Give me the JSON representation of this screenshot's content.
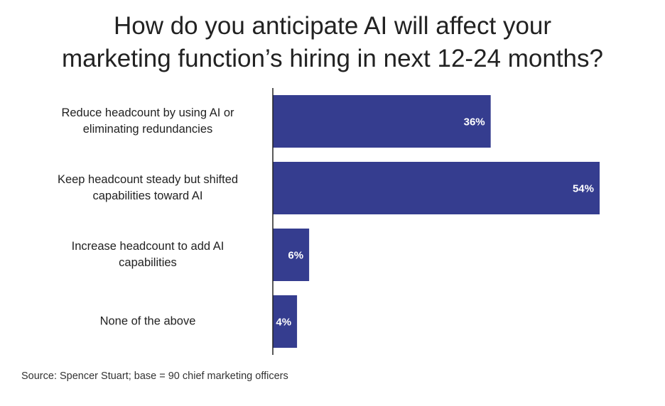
{
  "chart_data": {
    "type": "bar",
    "orientation": "horizontal",
    "title_lines": [
      "How do you anticipate AI will affect your",
      "marketing function’s hiring in next 12-24 months?"
    ],
    "categories": [
      [
        "Reduce headcount by using AI or",
        "eliminating redundancies"
      ],
      [
        "Keep headcount steady but shifted",
        "capabilities toward AI"
      ],
      [
        "Increase headcount to add AI",
        "capabilities"
      ],
      [
        "None of the above"
      ]
    ],
    "values": [
      36,
      54,
      6,
      4
    ],
    "value_labels": [
      "36%",
      "54%",
      "6%",
      "4%"
    ],
    "xlim": [
      0,
      54
    ],
    "bar_color": "#353d8f",
    "label_color": "#ffffff",
    "axis_color": "#222222"
  },
  "source": "Source: Spencer Stuart; base = 90 chief marketing officers"
}
